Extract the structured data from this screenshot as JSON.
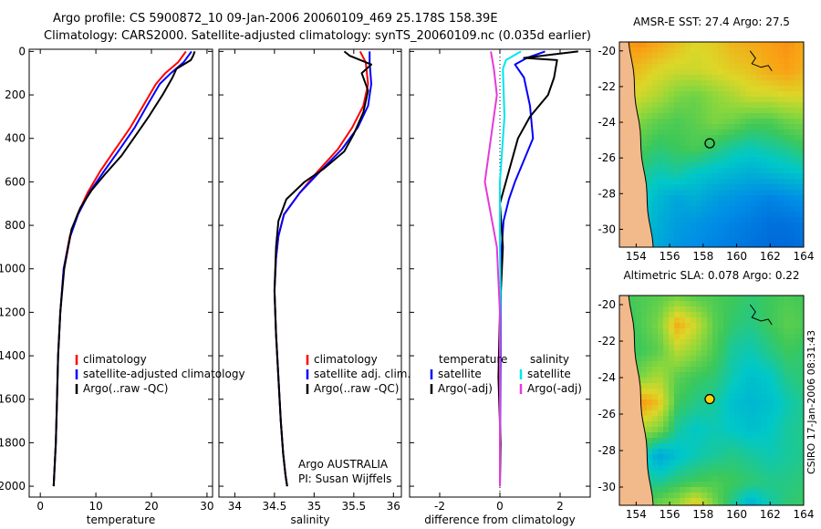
{
  "header": {
    "title_line1": "Argo profile: CS 5900872_10 09-Jan-2006 20060109_469 25.178S 158.39E",
    "title_line2": "Climatology: CARS2000. Satellite-adjusted climatology: synTS_20060109.nc (0.035d earlier)"
  },
  "colors": {
    "climatology": "#ff0000",
    "satellite": "#0000ff",
    "argo": "#000000",
    "cyan": "#00e5ee",
    "magenta": "#e53ad8"
  },
  "chart_data": [
    {
      "type": "line",
      "id": "temperature",
      "xlabel": "temperature",
      "ylabel": "",
      "xlim": [
        -2,
        31
      ],
      "ylim": [
        2050,
        -10
      ],
      "xticks": [
        0,
        10,
        20,
        30
      ],
      "yticks": [
        0,
        200,
        400,
        600,
        800,
        1000,
        1200,
        1400,
        1600,
        1800,
        2000
      ],
      "legend": [
        "climatology",
        "satellite-adjusted climatology",
        "Argo(..raw -QC)"
      ],
      "series": [
        {
          "name": "climatology",
          "color": "red",
          "x": [
            26.2,
            24.8,
            22.5,
            20.8,
            18.5,
            16.2,
            13.5,
            10.8,
            8.5,
            6.7,
            5.3,
            4.2,
            3.6,
            3.2,
            3.0,
            2.8,
            2.5,
            2.4
          ],
          "y": [
            0,
            50,
            100,
            150,
            250,
            350,
            450,
            550,
            650,
            750,
            850,
            1000,
            1200,
            1400,
            1600,
            1800,
            1950,
            2000
          ]
        },
        {
          "name": "satellite-adjusted climatology",
          "color": "blue",
          "x": [
            27.2,
            25.8,
            23.5,
            21.5,
            19.2,
            17.0,
            14.3,
            11.5,
            8.8,
            6.8,
            5.4,
            4.2,
            3.6,
            3.2,
            3.0,
            2.8,
            2.5,
            2.4
          ],
          "y": [
            0,
            50,
            100,
            150,
            250,
            350,
            450,
            550,
            650,
            750,
            850,
            1000,
            1200,
            1400,
            1600,
            1800,
            1950,
            2000
          ]
        },
        {
          "name": "Argo(..raw -QC)",
          "color": "black",
          "x": [
            27.8,
            27.5,
            27.1,
            24.5,
            23.8,
            22.0,
            19.5,
            16.8,
            14.6,
            11.8,
            9.2,
            7.2,
            5.6,
            4.3,
            3.6,
            3.2,
            3.0,
            2.8,
            2.5,
            2.4
          ],
          "y": [
            0,
            20,
            40,
            80,
            120,
            200,
            300,
            400,
            480,
            560,
            640,
            720,
            820,
            1000,
            1200,
            1400,
            1600,
            1800,
            1950,
            2000
          ]
        }
      ]
    },
    {
      "type": "line",
      "id": "salinity",
      "xlabel": "salinity",
      "ylabel": "",
      "xlim": [
        33.8,
        36.1
      ],
      "ylim": [
        2050,
        -10
      ],
      "xticks": [
        34,
        34.5,
        35,
        35.5,
        36
      ],
      "legend": [
        "climatology",
        "satellite adj. clim.",
        "Argo(..raw -QC)"
      ],
      "annotation": [
        "Argo AUSTRALIA",
        "PI: Susan Wijffels"
      ],
      "series": [
        {
          "name": "climatology",
          "color": "red",
          "x": [
            35.58,
            35.65,
            35.68,
            35.62,
            35.48,
            35.3,
            35.05,
            34.82,
            34.62,
            34.55,
            34.52,
            34.5,
            34.52,
            34.55,
            34.58,
            34.61,
            34.64,
            34.66
          ],
          "y": [
            0,
            50,
            150,
            250,
            350,
            450,
            550,
            650,
            750,
            850,
            950,
            1100,
            1300,
            1500,
            1700,
            1850,
            1950,
            2000
          ]
        },
        {
          "name": "satellite adj. clim.",
          "color": "blue",
          "x": [
            35.7,
            35.7,
            35.72,
            35.68,
            35.55,
            35.35,
            35.08,
            34.82,
            34.62,
            34.55,
            34.52,
            34.5,
            34.52,
            34.55,
            34.58,
            34.61,
            34.64,
            34.66
          ],
          "y": [
            0,
            50,
            150,
            250,
            350,
            450,
            550,
            650,
            750,
            850,
            950,
            1100,
            1300,
            1500,
            1700,
            1850,
            1950,
            2000
          ]
        },
        {
          "name": "Argo(..raw -QC)",
          "color": "black",
          "x": [
            35.38,
            35.45,
            35.72,
            35.6,
            35.68,
            35.62,
            35.5,
            35.38,
            35.12,
            34.88,
            34.65,
            34.55,
            34.52,
            34.5,
            34.52,
            34.55,
            34.58,
            34.61,
            34.64,
            34.66
          ],
          "y": [
            0,
            20,
            60,
            100,
            180,
            280,
            380,
            460,
            540,
            600,
            680,
            780,
            900,
            1100,
            1300,
            1500,
            1700,
            1850,
            1950,
            2000
          ]
        }
      ]
    },
    {
      "type": "line",
      "id": "difference",
      "xlabel": "difference from climatology",
      "ylabel": "",
      "xlim": [
        -3,
        3
      ],
      "ylim": [
        2050,
        -10
      ],
      "xticks": [
        -2,
        0,
        2
      ],
      "legend_temperature_title": "temperature",
      "legend_salinity_title": "salinity",
      "legend": [
        "satellite",
        "Argo(-adj)",
        "satellite",
        "Argo(-adj)"
      ],
      "series": [
        {
          "name": "temperature satellite",
          "color": "blue",
          "x": [
            1.5,
            0.9,
            0.5,
            0.8,
            1.0,
            1.1,
            0.8,
            0.5,
            0.3,
            0.12,
            0.06,
            0.03,
            0.02,
            0.01,
            0.0
          ],
          "y": [
            0,
            30,
            60,
            120,
            250,
            400,
            500,
            600,
            680,
            780,
            900,
            1100,
            1400,
            1700,
            2000
          ]
        },
        {
          "name": "temperature Argo(-adj)",
          "color": "black",
          "x": [
            2.6,
            0.8,
            1.9,
            1.8,
            1.6,
            1.0,
            0.6,
            0.3,
            0.0,
            0.1,
            0.0,
            -0.05,
            0.02,
            0.0
          ],
          "y": [
            0,
            30,
            40,
            120,
            200,
            300,
            400,
            550,
            700,
            900,
            1200,
            1500,
            1800,
            2000
          ]
        },
        {
          "name": "salinity satellite",
          "color": "cyan",
          "x": [
            0.7,
            0.2,
            0.1,
            0.15,
            0.0,
            0.0,
            0.02,
            0.0,
            0.0,
            0.0
          ],
          "y": [
            0,
            40,
            80,
            300,
            600,
            900,
            1100,
            1400,
            1700,
            2000
          ]
        },
        {
          "name": "salinity Argo(-adj)",
          "color": "magenta",
          "x": [
            -0.3,
            -0.2,
            -0.1,
            -0.3,
            -0.5,
            -0.3,
            -0.1,
            0.0,
            0.0,
            0.0
          ],
          "y": [
            0,
            80,
            200,
            400,
            600,
            750,
            900,
            1200,
            1600,
            2000
          ]
        }
      ]
    },
    {
      "type": "heatmap",
      "id": "sst",
      "title": "AMSR-E SST: 27.4 Argo: 27.5",
      "xlim": [
        153,
        164
      ],
      "ylim": [
        -31,
        -19.5
      ],
      "xticks": [
        154,
        156,
        158,
        160,
        162,
        164
      ],
      "yticks": [
        -20,
        -22,
        -24,
        -26,
        -28,
        -30
      ],
      "marker": [
        158.39,
        -25.178
      ],
      "field": [
        [
          0.72,
          0.74,
          0.7,
          0.66,
          0.62,
          0.64,
          0.68,
          0.7,
          0.72,
          0.74,
          0.7
        ],
        [
          0.7,
          0.66,
          0.62,
          0.6,
          0.6,
          0.62,
          0.64,
          0.66,
          0.7,
          0.72,
          0.68
        ],
        [
          0.64,
          0.6,
          0.56,
          0.5,
          0.48,
          0.52,
          0.56,
          0.6,
          0.6,
          0.62,
          0.62
        ],
        [
          0.58,
          0.5,
          0.46,
          0.44,
          0.46,
          0.5,
          0.48,
          0.44,
          0.44,
          0.48,
          0.5
        ],
        [
          0.52,
          0.44,
          0.4,
          0.42,
          0.44,
          0.4,
          0.36,
          0.34,
          0.36,
          0.38,
          0.42
        ],
        [
          0.46,
          0.38,
          0.34,
          0.36,
          0.32,
          0.3,
          0.28,
          0.26,
          0.28,
          0.3,
          0.32
        ],
        [
          0.4,
          0.34,
          0.28,
          0.24,
          0.26,
          0.22,
          0.2,
          0.18,
          0.16,
          0.18,
          0.2
        ],
        [
          0.36,
          0.3,
          0.26,
          0.22,
          0.2,
          0.18,
          0.16,
          0.14,
          0.12,
          0.12,
          0.14
        ],
        [
          0.34,
          0.3,
          0.24,
          0.2,
          0.18,
          0.16,
          0.14,
          0.12,
          0.1,
          0.1,
          0.12
        ]
      ]
    },
    {
      "type": "heatmap",
      "id": "sla",
      "title": "Altimetric SLA: 0.078 Argo: 0.22",
      "xlim": [
        153,
        164
      ],
      "ylim": [
        -31,
        -19.5
      ],
      "xticks": [
        154,
        156,
        158,
        160,
        162,
        164
      ],
      "yticks": [
        -20,
        -22,
        -24,
        -26,
        -28,
        -30
      ],
      "marker": [
        158.39,
        -25.178
      ],
      "field": [
        [
          0.42,
          0.44,
          0.46,
          0.5,
          0.46,
          0.44,
          0.42,
          0.4,
          0.42,
          0.44,
          0.42
        ],
        [
          0.4,
          0.44,
          0.5,
          0.7,
          0.6,
          0.46,
          0.4,
          0.38,
          0.42,
          0.46,
          0.44
        ],
        [
          0.38,
          0.42,
          0.46,
          0.58,
          0.52,
          0.44,
          0.36,
          0.34,
          0.38,
          0.42,
          0.4
        ],
        [
          0.42,
          0.5,
          0.56,
          0.46,
          0.42,
          0.4,
          0.34,
          0.3,
          0.32,
          0.38,
          0.4
        ],
        [
          0.5,
          0.74,
          0.66,
          0.42,
          0.38,
          0.36,
          0.3,
          0.28,
          0.3,
          0.34,
          0.38
        ],
        [
          0.44,
          0.56,
          0.5,
          0.36,
          0.32,
          0.34,
          0.32,
          0.3,
          0.32,
          0.36,
          0.38
        ],
        [
          0.38,
          0.36,
          0.24,
          0.3,
          0.34,
          0.36,
          0.38,
          0.36,
          0.34,
          0.36,
          0.38
        ],
        [
          0.4,
          0.38,
          0.36,
          0.4,
          0.42,
          0.44,
          0.42,
          0.4,
          0.38,
          0.38,
          0.4
        ],
        [
          0.42,
          0.44,
          0.5,
          0.56,
          0.7,
          0.5,
          0.36,
          0.24,
          0.34,
          0.4,
          0.42
        ]
      ]
    }
  ],
  "footer_stamp": "CSIRO 17-Jan-2006 08:31:43"
}
